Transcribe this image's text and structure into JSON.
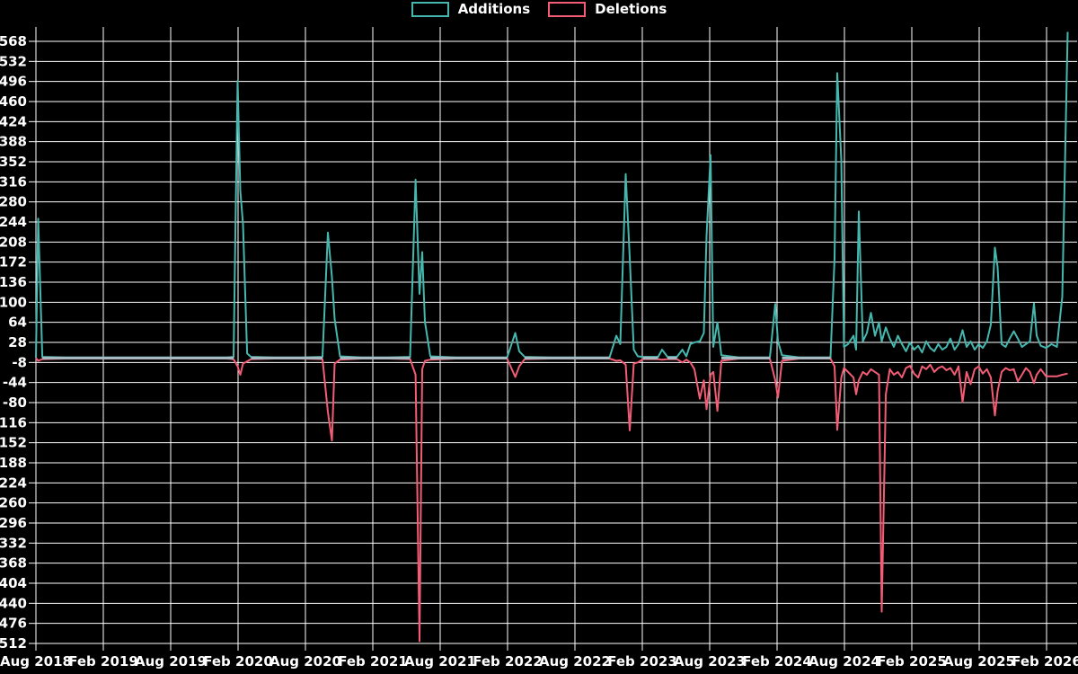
{
  "chart_data": {
    "type": "line",
    "description_of_values": "weekly additions (positive) and deletions (negative), read from gridlines",
    "colors": {
      "background": "#000000",
      "grid": "#ffffff",
      "text": "#ffffff",
      "additions": "#45b7ae",
      "deletions": "#f25c74",
      "zero_overlap_line": "#a5bcc3"
    },
    "series": [
      {
        "name": "Additions",
        "color": "#45b7ae"
      },
      {
        "name": "Deletions",
        "color": "#f25c74"
      }
    ],
    "legend_position": "top-center",
    "grid": true,
    "y_axis": {
      "min": -512,
      "max": 568,
      "tick_step": 36
    },
    "x_axis": {
      "tick_labels": [
        "Aug 2018",
        "Feb 2019",
        "Aug 2019",
        "Feb 2020",
        "Aug 2020",
        "Feb 2021",
        "Aug 2021",
        "Feb 2022",
        "Aug 2022",
        "Feb 2023",
        "Aug 2023",
        "Feb 2024",
        "Aug 2024",
        "Feb 2025",
        "Aug 2025",
        "Feb 2026"
      ],
      "start_year_decimal": 2018.583,
      "tick_step_years": 0.5
    },
    "points_format": [
      "decimal_year",
      "additions",
      "deletions"
    ],
    "points": [
      [
        2018.583,
        0,
        0
      ],
      [
        2018.6,
        250,
        -5
      ],
      [
        2018.63,
        2,
        -2
      ],
      [
        2018.8,
        1,
        -1
      ],
      [
        2019.1,
        1,
        -1
      ],
      [
        2019.4,
        1,
        -1
      ],
      [
        2019.7,
        1,
        -1
      ],
      [
        2020.0,
        1,
        -1
      ],
      [
        2020.05,
        2,
        -2
      ],
      [
        2020.08,
        497,
        -15
      ],
      [
        2020.1,
        300,
        -30
      ],
      [
        2020.12,
        240,
        -10
      ],
      [
        2020.15,
        8,
        -6
      ],
      [
        2020.18,
        2,
        -2
      ],
      [
        2020.35,
        1,
        -1
      ],
      [
        2020.55,
        1,
        -1
      ],
      [
        2020.71,
        2,
        -2
      ],
      [
        2020.75,
        225,
        -97
      ],
      [
        2020.78,
        145,
        -148
      ],
      [
        2020.8,
        70,
        -10
      ],
      [
        2020.84,
        3,
        -3
      ],
      [
        2021.0,
        1,
        -1
      ],
      [
        2021.2,
        1,
        -1
      ],
      [
        2021.36,
        2,
        -2
      ],
      [
        2021.4,
        320,
        -30
      ],
      [
        2021.43,
        115,
        -508
      ],
      [
        2021.45,
        190,
        -20
      ],
      [
        2021.47,
        65,
        -5
      ],
      [
        2021.51,
        3,
        -3
      ],
      [
        2021.7,
        1,
        -1
      ],
      [
        2021.9,
        1,
        -1
      ],
      [
        2022.08,
        1,
        -1
      ],
      [
        2022.14,
        45,
        -34
      ],
      [
        2022.17,
        12,
        -15
      ],
      [
        2022.21,
        2,
        -2
      ],
      [
        2022.4,
        1,
        -1
      ],
      [
        2022.6,
        1,
        -1
      ],
      [
        2022.84,
        1,
        -1
      ],
      [
        2022.89,
        40,
        -5
      ],
      [
        2022.92,
        25,
        -4
      ],
      [
        2022.96,
        330,
        -12
      ],
      [
        2022.99,
        180,
        -130
      ],
      [
        2023.02,
        15,
        -10
      ],
      [
        2023.05,
        3,
        -8
      ],
      [
        2023.09,
        2,
        -2
      ],
      [
        2023.2,
        2,
        -2
      ],
      [
        2023.23,
        15,
        -3
      ],
      [
        2023.27,
        2,
        -2
      ],
      [
        2023.34,
        2,
        -2
      ],
      [
        2023.38,
        15,
        -8
      ],
      [
        2023.41,
        3,
        -3
      ],
      [
        2023.44,
        25,
        -8
      ],
      [
        2023.47,
        28,
        -20
      ],
      [
        2023.51,
        30,
        -73
      ],
      [
        2023.54,
        45,
        -40
      ],
      [
        2023.56,
        219,
        -92
      ],
      [
        2023.59,
        364,
        -30
      ],
      [
        2023.61,
        20,
        -25
      ],
      [
        2023.64,
        64,
        -95
      ],
      [
        2023.67,
        5,
        -5
      ],
      [
        2023.8,
        1,
        -1
      ],
      [
        2023.95,
        1,
        -1
      ],
      [
        2024.03,
        1,
        -1
      ],
      [
        2024.07,
        97,
        -40
      ],
      [
        2024.09,
        30,
        -71
      ],
      [
        2024.12,
        5,
        -5
      ],
      [
        2024.25,
        1,
        -1
      ],
      [
        2024.4,
        1,
        -1
      ],
      [
        2024.48,
        1,
        -1
      ],
      [
        2024.51,
        179,
        -15
      ],
      [
        2024.53,
        511,
        -129
      ],
      [
        2024.56,
        355,
        -35
      ],
      [
        2024.58,
        20,
        -18
      ],
      [
        2024.61,
        25,
        -25
      ],
      [
        2024.65,
        40,
        -35
      ],
      [
        2024.67,
        15,
        -65
      ],
      [
        2024.69,
        263,
        -40
      ],
      [
        2024.72,
        30,
        -25
      ],
      [
        2024.75,
        45,
        -30
      ],
      [
        2024.78,
        81,
        -20
      ],
      [
        2024.81,
        40,
        -25
      ],
      [
        2024.84,
        64,
        -30
      ],
      [
        2024.86,
        30,
        -455
      ],
      [
        2024.89,
        55,
        -65
      ],
      [
        2024.92,
        35,
        -20
      ],
      [
        2024.95,
        20,
        -30
      ],
      [
        2024.98,
        40,
        -25
      ],
      [
        2025.01,
        25,
        -35
      ],
      [
        2025.04,
        12,
        -18
      ],
      [
        2025.07,
        28,
        -14
      ],
      [
        2025.1,
        15,
        -28
      ],
      [
        2025.13,
        22,
        -35
      ],
      [
        2025.16,
        10,
        -15
      ],
      [
        2025.19,
        30,
        -20
      ],
      [
        2025.22,
        18,
        -12
      ],
      [
        2025.25,
        12,
        -25
      ],
      [
        2025.28,
        25,
        -18
      ],
      [
        2025.31,
        15,
        -15
      ],
      [
        2025.34,
        20,
        -22
      ],
      [
        2025.37,
        35,
        -18
      ],
      [
        2025.4,
        15,
        -30
      ],
      [
        2025.43,
        25,
        -15
      ],
      [
        2025.46,
        50,
        -79
      ],
      [
        2025.49,
        20,
        -25
      ],
      [
        2025.52,
        30,
        -47
      ],
      [
        2025.55,
        15,
        -20
      ],
      [
        2025.58,
        25,
        -15
      ],
      [
        2025.61,
        18,
        -28
      ],
      [
        2025.64,
        30,
        -20
      ],
      [
        2025.67,
        60,
        -35
      ],
      [
        2025.7,
        198,
        -103
      ],
      [
        2025.72,
        163,
        -60
      ],
      [
        2025.75,
        25,
        -25
      ],
      [
        2025.78,
        20,
        -18
      ],
      [
        2025.81,
        35,
        -22
      ],
      [
        2025.84,
        48,
        -20
      ],
      [
        2025.87,
        35,
        -42
      ],
      [
        2025.9,
        20,
        -30
      ],
      [
        2025.93,
        25,
        -18
      ],
      [
        2025.96,
        30,
        -25
      ],
      [
        2025.99,
        98,
        -45
      ],
      [
        2026.01,
        40,
        -30
      ],
      [
        2026.04,
        22,
        -20
      ],
      [
        2026.08,
        18,
        -33
      ],
      [
        2026.12,
        25,
        -33
      ],
      [
        2026.16,
        20,
        -33
      ],
      [
        2026.2,
        110,
        -30
      ],
      [
        2026.24,
        585,
        -28
      ]
    ]
  }
}
